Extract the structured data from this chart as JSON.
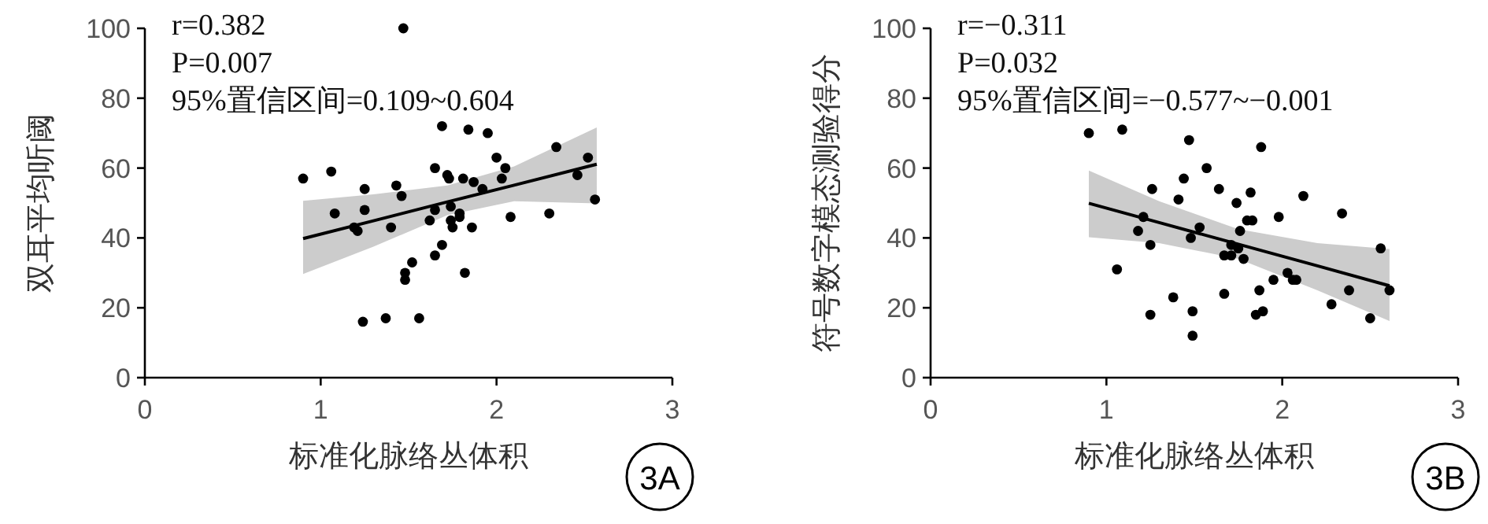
{
  "chart_data": [
    {
      "type": "scatter",
      "xlabel": "标准化脉络丛体积",
      "ylabel": "双耳平均听阈",
      "xlim": [
        0,
        3
      ],
      "xticks": [
        0,
        1,
        2,
        3
      ],
      "ylim": [
        0,
        100
      ],
      "yticks": [
        0,
        20,
        40,
        60,
        80,
        100
      ],
      "grid": false,
      "marker": "circle",
      "annotations": [
        "r=0.382",
        "P=0.007",
        "95%置信区间=0.109~0.604",
        "3A"
      ],
      "series": [
        {
          "color": "#000000",
          "x": [
            0.9,
            1.06,
            1.08,
            1.19,
            1.21,
            1.25,
            1.25,
            1.4,
            1.43,
            1.46,
            1.47,
            1.24,
            1.37,
            1.56,
            1.48,
            1.48,
            1.52,
            1.65,
            1.69,
            1.82,
            1.62,
            1.65,
            1.65,
            1.69,
            1.72,
            1.73,
            1.74,
            1.74,
            1.79,
            1.79,
            1.75,
            1.81,
            1.87,
            1.86,
            1.84,
            1.95,
            1.92,
            2.0,
            2.05,
            2.03,
            2.08,
            2.3,
            2.34,
            2.46,
            2.52,
            2.56
          ],
          "values": [
            57,
            59,
            47,
            43,
            42,
            54,
            48,
            43,
            55,
            52,
            100,
            16,
            17,
            17,
            28,
            30,
            33,
            35,
            38,
            30,
            45,
            48,
            60,
            72,
            58,
            57,
            49,
            45,
            47,
            46,
            43,
            57,
            56,
            43,
            71,
            70,
            54,
            63,
            60,
            57,
            46,
            47,
            66,
            58,
            63,
            51
          ]
        },
        {
          "type": "line",
          "color": "#000000",
          "marker": "none",
          "line_style": "solid",
          "x": [
            0.9,
            1.3,
            1.72,
            2.1,
            2.57
          ],
          "values": [
            39.8,
            44.9,
            50.3,
            55.1,
            61.1
          ],
          "lower": [
            29.7,
            37.5,
            46.5,
            50.5,
            49.9
          ],
          "upper": [
            50.6,
            52.5,
            55,
            60.5,
            71.6
          ]
        }
      ]
    },
    {
      "type": "scatter",
      "xlabel": "标准化脉络丛体积",
      "ylabel": "符号数字模态测验得分",
      "xlim": [
        0,
        3
      ],
      "xticks": [
        0,
        1,
        2,
        3
      ],
      "ylim": [
        0,
        100
      ],
      "yticks": [
        0,
        20,
        40,
        60,
        80,
        100
      ],
      "grid": false,
      "marker": "circle",
      "annotations": [
        "r=−0.311",
        "P=0.032",
        "95%置信区间=−0.577~−0.001",
        "3B"
      ],
      "series": [
        {
          "color": "#000000",
          "x": [
            0.9,
            1.09,
            1.47,
            1.88,
            1.57,
            1.44,
            1.26,
            1.64,
            1.41,
            1.74,
            1.82,
            2.12,
            2.34,
            1.98,
            1.21,
            1.18,
            1.25,
            1.48,
            1.53,
            1.76,
            1.8,
            1.83,
            1.71,
            1.75,
            1.67,
            1.71,
            1.78,
            2.56,
            1.06,
            2.03,
            2.06,
            2.08,
            1.95,
            1.87,
            1.67,
            1.38,
            2.38,
            2.28,
            2.61,
            1.89,
            1.85,
            1.49,
            1.25,
            2.5,
            1.49
          ],
          "values": [
            70,
            71,
            68,
            66,
            60,
            57,
            54,
            54,
            51,
            50,
            53,
            52,
            47,
            46,
            46,
            42,
            38,
            40,
            43,
            42,
            45,
            45,
            38,
            37,
            35,
            35,
            34,
            37,
            31,
            30,
            28,
            28,
            28,
            25,
            24,
            23,
            25,
            21,
            25,
            19,
            18,
            19,
            18,
            17,
            12
          ]
        },
        {
          "type": "line",
          "color": "#000000",
          "marker": "none",
          "line_style": "solid",
          "x": [
            0.9,
            1.3,
            1.75,
            2.2,
            2.61
          ],
          "values": [
            49.9,
            44.4,
            38.2,
            32.0,
            26.3
          ],
          "lower": [
            40.2,
            38.5,
            34,
            25,
            16.2
          ],
          "upper": [
            59.3,
            50.5,
            42.5,
            38.5,
            36.8
          ]
        }
      ]
    }
  ]
}
